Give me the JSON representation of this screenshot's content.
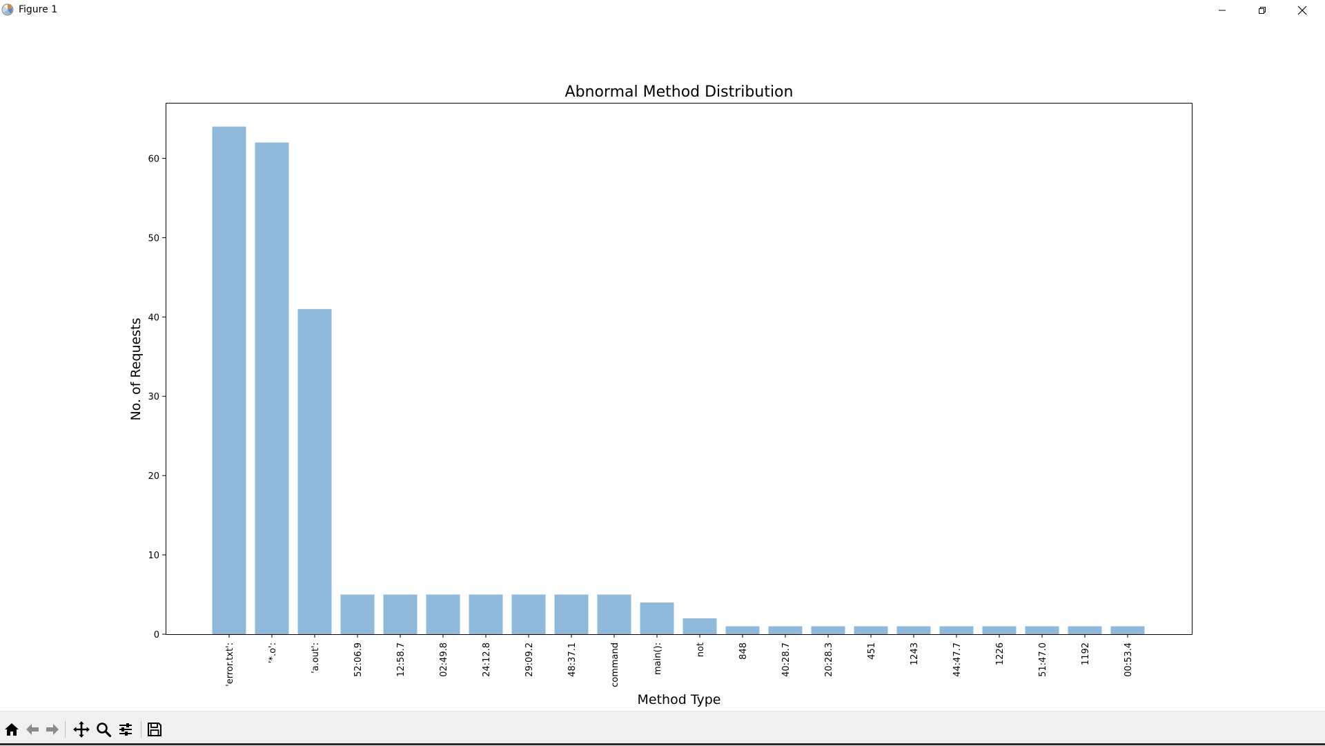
{
  "window": {
    "title": "Figure 1",
    "icons": {
      "app": "matplotlib-logo-icon",
      "minimize": "minimize-icon",
      "maximize": "restore-icon",
      "close": "close-icon"
    }
  },
  "toolbar": {
    "buttons": [
      {
        "name": "home-icon"
      },
      {
        "name": "back-arrow-icon"
      },
      {
        "name": "forward-arrow-icon"
      },
      {
        "name": "pan-move-icon"
      },
      {
        "name": "zoom-magnifier-icon"
      },
      {
        "name": "configure-subplots-icon"
      },
      {
        "name": "save-floppy-icon"
      }
    ]
  },
  "chart_data": {
    "type": "bar",
    "title": "Abnormal Method Distribution",
    "xlabel": "Method Type",
    "ylabel": "No. of Requests",
    "categories": [
      "'error.txt':",
      "'*.o':",
      "'a.out':",
      "52:06.9",
      "12:58.7",
      "02:49.8",
      "24:12.8",
      "29:09.2",
      "48:37.1",
      "command",
      "main():",
      "not",
      "848",
      "40:28.7",
      "20:28.3",
      "451",
      "1243",
      "44:47.7",
      "1226",
      "51:47.0",
      "1192",
      "00:53.4"
    ],
    "values": [
      64,
      62,
      41,
      5,
      5,
      5,
      5,
      5,
      5,
      5,
      4,
      2,
      1,
      1,
      1,
      1,
      1,
      1,
      1,
      1,
      1,
      1
    ],
    "ylim": [
      0,
      67
    ],
    "yticks": [
      0,
      10,
      20,
      30,
      40,
      50,
      60
    ],
    "bar_color": "#8fbadb",
    "grid": false,
    "tick_label_rotation": "vertical"
  }
}
